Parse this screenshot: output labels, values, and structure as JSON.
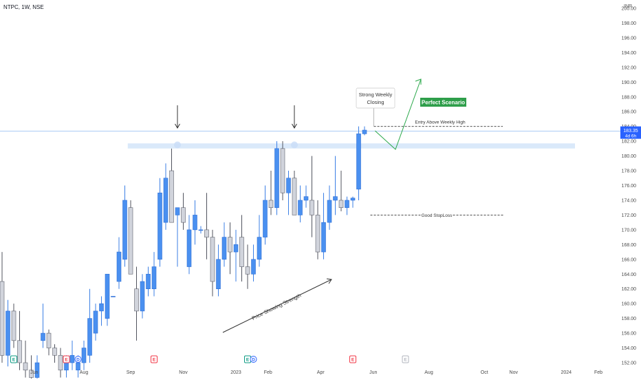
{
  "header": {
    "symbol": "NTPC, 1W, NSE",
    "currency": "INR"
  },
  "price_badge": {
    "price": "183.35",
    "countdown": "4d 6h",
    "color": "#2962ff"
  },
  "annotations": {
    "strong_weekly_line1": "Strong Weekly",
    "strong_weekly_line2": "Closing",
    "perfect_scenario": "Perfect Scenario",
    "entry_label": "Entry Above Weekly High",
    "stoploss_label": "Good StopLoss",
    "strength_label": "Price Showing Strength"
  },
  "events": [
    {
      "label": "E",
      "type": "earnings",
      "color": "#089981",
      "index": 2
    },
    {
      "label": "E",
      "type": "earnings",
      "color": "#f23645",
      "index": 11
    },
    {
      "label": "D",
      "type": "dividend",
      "color": "#2962ff",
      "index": 13
    },
    {
      "label": "E",
      "type": "earnings",
      "color": "#f23645",
      "index": 26
    },
    {
      "label": "E",
      "type": "earnings",
      "color": "#089981",
      "index": 42
    },
    {
      "label": "D",
      "type": "dividend",
      "color": "#2962ff",
      "index": 43
    },
    {
      "label": "E",
      "type": "earnings",
      "color": "#f23645",
      "index": 60
    },
    {
      "label": "E",
      "type": "earnings",
      "color": "#b2b5be",
      "index": 69
    }
  ],
  "chart_data": {
    "type": "candlestick",
    "y_axis_ticks": [
      "152.00",
      "154.00",
      "156.00",
      "158.00",
      "160.00",
      "162.00",
      "164.00",
      "166.00",
      "168.00",
      "170.00",
      "172.00",
      "174.00",
      "176.00",
      "178.00",
      "180.00",
      "182.00",
      "184.00",
      "186.00",
      "188.00",
      "190.00",
      "192.00",
      "194.00",
      "196.00",
      "198.00",
      "200.00"
    ],
    "ylim": [
      151.6,
      201.5
    ],
    "x_axis_labels": [
      {
        "label": "Jun",
        "index": 5.5
      },
      {
        "label": "Aug",
        "index": 14
      },
      {
        "label": "Sep",
        "index": 22
      },
      {
        "label": "Nov",
        "index": 31
      },
      {
        "label": "2023",
        "index": 40
      },
      {
        "label": "Feb",
        "index": 45.5
      },
      {
        "label": "Apr",
        "index": 54.5
      },
      {
        "label": "Jun",
        "index": 63.5
      },
      {
        "label": "Aug",
        "index": 73
      },
      {
        "label": "Oct",
        "index": 82.5
      },
      {
        "label": "Nov",
        "index": 87.5
      },
      {
        "label": "2024",
        "index": 96.5
      },
      {
        "label": "Feb",
        "index": 102
      }
    ],
    "up_color": "#4a90f0",
    "down_color": "#d1d4dc",
    "candles": [
      {
        "o": 163.0,
        "h": 167.0,
        "l": 152.0,
        "c": 153.0
      },
      {
        "o": 153.0,
        "h": 160.5,
        "l": 151.5,
        "c": 159.0
      },
      {
        "o": 159.0,
        "h": 160.0,
        "l": 154.0,
        "c": 155.0
      },
      {
        "o": 155.0,
        "h": 159.0,
        "l": 151.0,
        "c": 152.0
      },
      {
        "o": 152.0,
        "h": 155.0,
        "l": 150.0,
        "c": 151.0
      },
      {
        "o": 151.0,
        "h": 153.0,
        "l": 148.0,
        "c": 150.0
      },
      {
        "o": 150.0,
        "h": 153.0,
        "l": 149.0,
        "c": 152.0
      },
      {
        "o": 155.0,
        "h": 160.0,
        "l": 154.0,
        "c": 156.0
      },
      {
        "o": 156.0,
        "h": 156.5,
        "l": 153.0,
        "c": 154.0
      },
      {
        "o": 154.0,
        "h": 154.5,
        "l": 152.0,
        "c": 153.0
      },
      {
        "o": 153.0,
        "h": 154.0,
        "l": 150.0,
        "c": 151.0
      },
      {
        "o": 151.0,
        "h": 153.0,
        "l": 150.0,
        "c": 152.0
      },
      {
        "o": 152.0,
        "h": 155.0,
        "l": 151.0,
        "c": 153.0
      },
      {
        "o": 151.0,
        "h": 153.0,
        "l": 150.0,
        "c": 152.0
      },
      {
        "o": 152.0,
        "h": 155.0,
        "l": 151.0,
        "c": 154.0
      },
      {
        "o": 153.0,
        "h": 162.0,
        "l": 152.0,
        "c": 158.0
      },
      {
        "o": 156.0,
        "h": 160.0,
        "l": 155.0,
        "c": 159.0
      },
      {
        "o": 159.0,
        "h": 161.0,
        "l": 157.0,
        "c": 160.0
      },
      {
        "o": 158.0,
        "h": 164.0,
        "l": 157.0,
        "c": 164.0
      },
      {
        "o": 161.0,
        "h": 161.0,
        "l": 161.0,
        "c": 161.0
      },
      {
        "o": 163.0,
        "h": 169.0,
        "l": 162.0,
        "c": 167.0
      },
      {
        "o": 166.0,
        "h": 176.0,
        "l": 165.0,
        "c": 174.0
      },
      {
        "o": 173.0,
        "h": 174.0,
        "l": 164.0,
        "c": 164.0
      },
      {
        "o": 162.0,
        "h": 165.0,
        "l": 155.0,
        "c": 159.0
      },
      {
        "o": 159.0,
        "h": 164.0,
        "l": 158.0,
        "c": 163.0
      },
      {
        "o": 162.0,
        "h": 165.0,
        "l": 161.0,
        "c": 164.0
      },
      {
        "o": 162.0,
        "h": 167.0,
        "l": 161.0,
        "c": 165.0
      },
      {
        "o": 166.0,
        "h": 177.0,
        "l": 165.0,
        "c": 175.0
      },
      {
        "o": 171.0,
        "h": 179.0,
        "l": 170.0,
        "c": 177.0
      },
      {
        "o": 178.0,
        "h": 181.0,
        "l": 171.0,
        "c": 171.0
      },
      {
        "o": 172.0,
        "h": 173.0,
        "l": 165.0,
        "c": 173.0
      },
      {
        "o": 173.0,
        "h": 175.0,
        "l": 170.0,
        "c": 171.0
      },
      {
        "o": 165.0,
        "h": 172.0,
        "l": 164.0,
        "c": 170.0
      },
      {
        "o": 170.0,
        "h": 174.0,
        "l": 168.0,
        "c": 172.0
      },
      {
        "o": 170.0,
        "h": 170.5,
        "l": 169.5,
        "c": 170.0
      },
      {
        "o": 170.0,
        "h": 175.0,
        "l": 166.0,
        "c": 169.0
      },
      {
        "o": 169.0,
        "h": 170.0,
        "l": 161.0,
        "c": 163.0
      },
      {
        "o": 162.0,
        "h": 168.0,
        "l": 161.0,
        "c": 166.0
      },
      {
        "o": 166.0,
        "h": 171.0,
        "l": 165.0,
        "c": 169.0
      },
      {
        "o": 169.0,
        "h": 171.0,
        "l": 164.0,
        "c": 167.0
      },
      {
        "o": 167.0,
        "h": 170.0,
        "l": 163.0,
        "c": 168.0
      },
      {
        "o": 169.0,
        "h": 172.0,
        "l": 163.0,
        "c": 165.0
      },
      {
        "o": 165.0,
        "h": 168.0,
        "l": 162.0,
        "c": 164.0
      },
      {
        "o": 164.0,
        "h": 168.0,
        "l": 163.0,
        "c": 166.0
      },
      {
        "o": 166.0,
        "h": 172.0,
        "l": 165.0,
        "c": 169.0
      },
      {
        "o": 169.0,
        "h": 176.0,
        "l": 168.0,
        "c": 174.0
      },
      {
        "o": 174.0,
        "h": 178.0,
        "l": 172.0,
        "c": 173.0
      },
      {
        "o": 173.0,
        "h": 182.0,
        "l": 172.0,
        "c": 181.0
      },
      {
        "o": 181.0,
        "h": 182.0,
        "l": 174.0,
        "c": 175.0
      },
      {
        "o": 175.0,
        "h": 178.0,
        "l": 172.0,
        "c": 177.0
      },
      {
        "o": 177.0,
        "h": 178.0,
        "l": 172.0,
        "c": 172.0
      },
      {
        "o": 172.0,
        "h": 176.0,
        "l": 171.0,
        "c": 174.0
      },
      {
        "o": 174.0,
        "h": 176.0,
        "l": 173.0,
        "c": 174.5
      },
      {
        "o": 174.0,
        "h": 180.0,
        "l": 169.0,
        "c": 172.0
      },
      {
        "o": 172.0,
        "h": 174.0,
        "l": 166.0,
        "c": 167.0
      },
      {
        "o": 167.0,
        "h": 175.0,
        "l": 166.0,
        "c": 171.0
      },
      {
        "o": 171.0,
        "h": 176.0,
        "l": 170.0,
        "c": 174.0
      },
      {
        "o": 174.0,
        "h": 180.0,
        "l": 172.0,
        "c": 174.5
      },
      {
        "o": 174.0,
        "h": 178.0,
        "l": 172.5,
        "c": 173.0
      },
      {
        "o": 173.0,
        "h": 174.5,
        "l": 172.0,
        "c": 174.0
      },
      {
        "o": 174.0,
        "h": 174.5,
        "l": 173.0,
        "c": 174.3
      },
      {
        "o": 175.5,
        "h": 184.0,
        "l": 174.0,
        "c": 183.0
      },
      {
        "o": 183.0,
        "h": 184.0,
        "l": 182.8,
        "c": 183.5
      }
    ]
  }
}
